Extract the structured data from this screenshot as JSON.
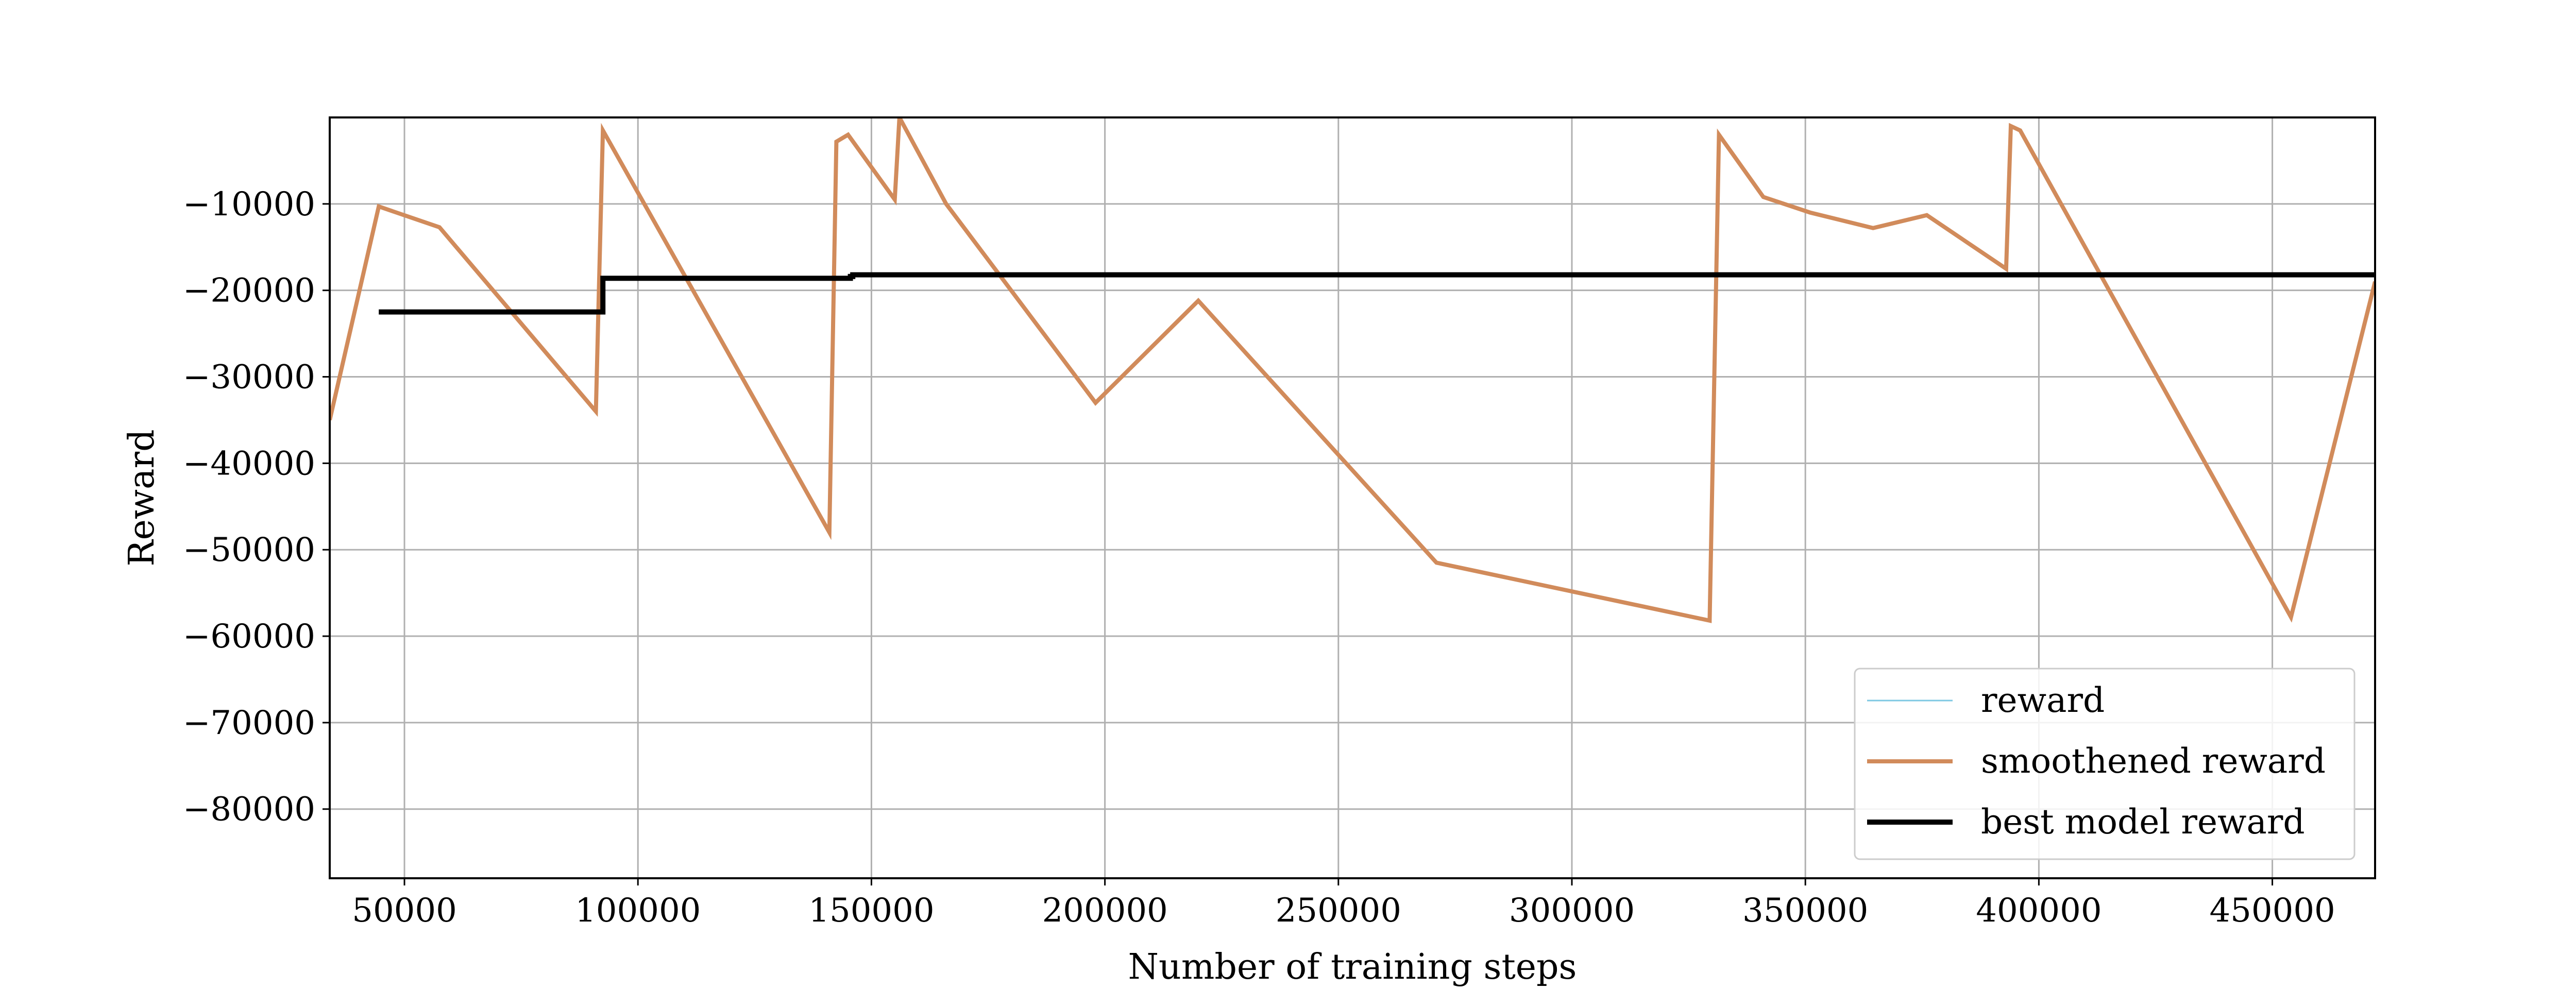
{
  "chart_data": {
    "type": "line",
    "title": "",
    "xlabel": "Number of training steps",
    "ylabel": "Reward",
    "xlim": [
      34000,
      472000
    ],
    "ylim": [
      -88000,
      0
    ],
    "xticks": [
      50000,
      100000,
      150000,
      200000,
      250000,
      300000,
      350000,
      400000,
      450000
    ],
    "xtick_labels": [
      "50000",
      "100000",
      "150000",
      "200000",
      "250000",
      "300000",
      "350000",
      "400000",
      "450000"
    ],
    "yticks": [
      -10000,
      -20000,
      -30000,
      -40000,
      -50000,
      -60000,
      -70000,
      -80000
    ],
    "ytick_labels": [
      "−10000",
      "−20000",
      "−30000",
      "−40000",
      "−50000",
      "−60000",
      "−70000",
      "−80000"
    ],
    "grid": true,
    "legend_position": "lower right",
    "series": [
      {
        "name": "reward",
        "color": "#7ec8e3",
        "x": [],
        "y": []
      },
      {
        "name": "smoothened reward",
        "color": "#d18b5b",
        "x": [
          34000,
          44500,
          57500,
          91000,
          92500,
          141000,
          142500,
          145000,
          155000,
          156000,
          166000,
          198000,
          220000,
          271000,
          329500,
          331500,
          341000,
          351000,
          364500,
          376000,
          393000,
          394000,
          396000,
          454000,
          472000
        ],
        "y": [
          -35000,
          -10300,
          -12700,
          -34000,
          -1500,
          -48000,
          -2800,
          -2000,
          -9500,
          0,
          -10000,
          -33000,
          -21200,
          -51500,
          -58200,
          -2000,
          -9200,
          -11000,
          -12800,
          -11300,
          -17500,
          -1000,
          -1500,
          -57800,
          -19000
        ]
      },
      {
        "name": "best model reward",
        "color": "#000000",
        "x": [
          44500,
          92500,
          92500,
          145500,
          145500,
          146000,
          146000,
          472000
        ],
        "y": [
          -22500,
          -22500,
          -18600,
          -18600,
          -18400,
          -18400,
          -18200,
          -18200
        ]
      }
    ]
  }
}
